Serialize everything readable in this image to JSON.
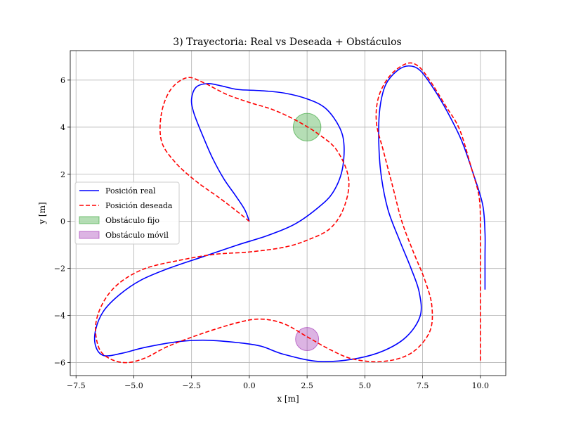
{
  "chart_data": {
    "type": "line",
    "title": "3) Trayectoria: Real vs Deseada + Obstáculos",
    "xlabel": "x [m]",
    "ylabel": "y [m]",
    "xlim": [
      -7.75,
      11.1
    ],
    "ylim": [
      -6.55,
      7.25
    ],
    "xticks": [
      -7.5,
      -5.0,
      -2.5,
      0.0,
      2.5,
      5.0,
      7.5,
      10.0
    ],
    "xtick_labels": [
      "−7.5",
      "−5.0",
      "−2.5",
      "0.0",
      "2.5",
      "5.0",
      "7.5",
      "10.0"
    ],
    "yticks": [
      -6,
      -4,
      -2,
      0,
      2,
      4,
      6
    ],
    "ytick_labels": [
      "−6",
      "−4",
      "−2",
      "0",
      "2",
      "4",
      "6"
    ],
    "grid": true,
    "legend_position": "center-left",
    "legend": [
      {
        "label": "Posición real",
        "kind": "line",
        "color": "#0000ff",
        "dash": "solid"
      },
      {
        "label": "Posición deseada",
        "kind": "line",
        "color": "#ff0000",
        "dash": "dashed"
      },
      {
        "label": "Obstáculo fijo",
        "kind": "patch",
        "color": "#2ca02c"
      },
      {
        "label": "Obstáculo móvil",
        "kind": "patch",
        "color": "#9c27b0"
      }
    ],
    "series": [
      {
        "name": "Posición real",
        "color": "#0000ff",
        "dash": "solid",
        "points": [
          [
            0.0,
            0.0
          ],
          [
            -0.2,
            0.5
          ],
          [
            -0.6,
            1.1
          ],
          [
            -1.1,
            1.8
          ],
          [
            -1.6,
            2.7
          ],
          [
            -2.0,
            3.6
          ],
          [
            -2.4,
            4.6
          ],
          [
            -2.5,
            5.2
          ],
          [
            -2.3,
            5.7
          ],
          [
            -1.8,
            5.85
          ],
          [
            -1.2,
            5.75
          ],
          [
            -0.5,
            5.6
          ],
          [
            0.5,
            5.55
          ],
          [
            1.5,
            5.45
          ],
          [
            2.5,
            5.2
          ],
          [
            3.3,
            4.8
          ],
          [
            3.9,
            4.0
          ],
          [
            4.1,
            3.2
          ],
          [
            4.0,
            2.1
          ],
          [
            3.6,
            1.2
          ],
          [
            3.0,
            0.6
          ],
          [
            2.0,
            -0.1
          ],
          [
            0.8,
            -0.6
          ],
          [
            -0.5,
            -1.0
          ],
          [
            -2.0,
            -1.5
          ],
          [
            -3.5,
            -2.0
          ],
          [
            -4.7,
            -2.5
          ],
          [
            -5.6,
            -3.1
          ],
          [
            -6.3,
            -3.8
          ],
          [
            -6.65,
            -4.6
          ],
          [
            -6.65,
            -5.3
          ],
          [
            -6.3,
            -5.7
          ],
          [
            -5.5,
            -5.6
          ],
          [
            -4.5,
            -5.35
          ],
          [
            -3.0,
            -5.1
          ],
          [
            -1.8,
            -5.05
          ],
          [
            -0.5,
            -5.15
          ],
          [
            0.5,
            -5.3
          ],
          [
            1.5,
            -5.65
          ],
          [
            3.0,
            -5.95
          ],
          [
            4.5,
            -5.85
          ],
          [
            5.8,
            -5.5
          ],
          [
            6.8,
            -4.9
          ],
          [
            7.4,
            -4.0
          ],
          [
            7.35,
            -3.0
          ],
          [
            7.0,
            -2.0
          ],
          [
            6.5,
            -0.8
          ],
          [
            6.0,
            0.5
          ],
          [
            5.7,
            2.0
          ],
          [
            5.6,
            3.5
          ],
          [
            5.65,
            4.8
          ],
          [
            5.9,
            5.8
          ],
          [
            6.4,
            6.4
          ],
          [
            6.9,
            6.6
          ],
          [
            7.4,
            6.4
          ],
          [
            8.0,
            5.6
          ],
          [
            8.6,
            4.6
          ],
          [
            9.2,
            3.4
          ],
          [
            9.7,
            2.0
          ],
          [
            10.1,
            0.7
          ],
          [
            10.2,
            -0.5
          ],
          [
            10.2,
            -1.5
          ],
          [
            10.2,
            -2.9
          ]
        ]
      },
      {
        "name": "Posición deseada",
        "color": "#ff0000",
        "dash": "dashed",
        "points": [
          [
            0.0,
            0.0
          ],
          [
            -0.5,
            0.4
          ],
          [
            -1.3,
            1.0
          ],
          [
            -2.3,
            1.7
          ],
          [
            -3.2,
            2.5
          ],
          [
            -3.8,
            3.4
          ],
          [
            -3.8,
            4.6
          ],
          [
            -3.4,
            5.6
          ],
          [
            -2.7,
            6.1
          ],
          [
            -2.0,
            5.9
          ],
          [
            -1.0,
            5.4
          ],
          [
            0.0,
            5.05
          ],
          [
            1.0,
            4.75
          ],
          [
            2.0,
            4.3
          ],
          [
            3.0,
            3.7
          ],
          [
            3.8,
            3.0
          ],
          [
            4.3,
            1.8
          ],
          [
            4.1,
            0.6
          ],
          [
            3.5,
            -0.3
          ],
          [
            2.5,
            -0.8
          ],
          [
            1.5,
            -1.1
          ],
          [
            0.0,
            -1.3
          ],
          [
            -1.5,
            -1.4
          ],
          [
            -3.0,
            -1.65
          ],
          [
            -4.5,
            -2.0
          ],
          [
            -5.6,
            -2.6
          ],
          [
            -6.3,
            -3.4
          ],
          [
            -6.65,
            -4.4
          ],
          [
            -6.5,
            -5.4
          ],
          [
            -6.0,
            -5.85
          ],
          [
            -5.3,
            -6.0
          ],
          [
            -4.5,
            -5.8
          ],
          [
            -3.5,
            -5.3
          ],
          [
            -2.0,
            -4.75
          ],
          [
            -0.5,
            -4.3
          ],
          [
            0.5,
            -4.15
          ],
          [
            1.5,
            -4.35
          ],
          [
            2.5,
            -4.9
          ],
          [
            3.5,
            -5.45
          ],
          [
            4.5,
            -5.85
          ],
          [
            5.8,
            -5.95
          ],
          [
            7.0,
            -5.6
          ],
          [
            7.8,
            -4.7
          ],
          [
            7.9,
            -3.6
          ],
          [
            7.6,
            -2.5
          ],
          [
            7.1,
            -1.3
          ],
          [
            6.6,
            0.0
          ],
          [
            6.2,
            1.5
          ],
          [
            5.8,
            3.0
          ],
          [
            5.5,
            4.2
          ],
          [
            5.6,
            5.3
          ],
          [
            6.1,
            6.2
          ],
          [
            6.8,
            6.7
          ],
          [
            7.3,
            6.6
          ],
          [
            7.8,
            6.0
          ],
          [
            8.5,
            4.9
          ],
          [
            9.1,
            3.9
          ],
          [
            9.6,
            2.3
          ],
          [
            9.95,
            1.0
          ],
          [
            10.0,
            -0.5
          ],
          [
            10.0,
            -2.5
          ],
          [
            10.0,
            -4.5
          ],
          [
            10.0,
            -6.0
          ]
        ]
      }
    ],
    "obstacles": [
      {
        "name": "Obstáculo fijo",
        "center": [
          2.5,
          4.0
        ],
        "radius": 0.6,
        "color": "#2ca02c"
      },
      {
        "name": "Obstáculo móvil",
        "center": [
          2.5,
          -5.0
        ],
        "radius": 0.5,
        "color": "#9c27b0"
      }
    ]
  }
}
